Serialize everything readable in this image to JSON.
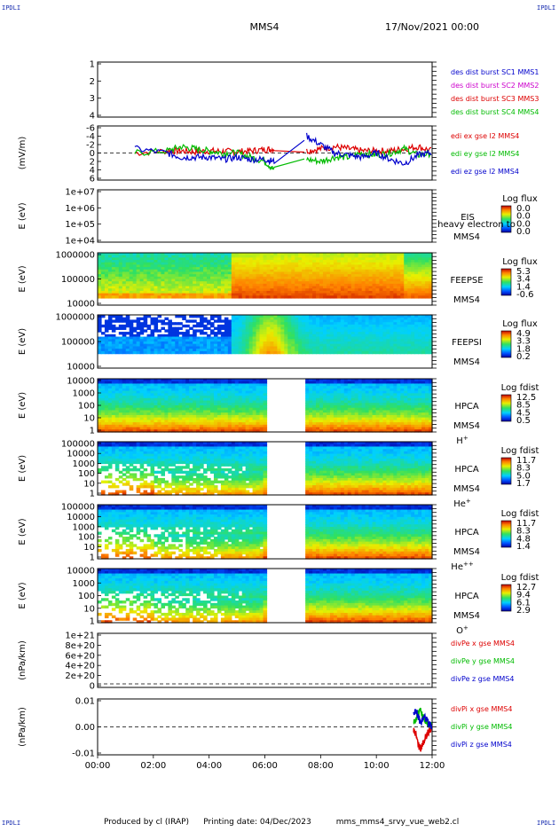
{
  "header": {
    "corner_tl": "IPDLI",
    "corner_tr": "IPDLI",
    "corner_bl": "IPDLI",
    "corner_br": "IPDLI",
    "spacecraft": "MMS4",
    "date": "17/Nov/2021 00:00"
  },
  "footer": {
    "produced_by": "Produced by cl (IRAP)",
    "printing_date": "Printing date: 04/Dec/2023",
    "script": "mms_mms4_srvy_vue_web2.cl"
  },
  "colors": {
    "blue": "#0000cc",
    "red": "#dd0000",
    "green": "#00bb00",
    "magenta": "#cc00cc",
    "frame": "#000000"
  },
  "chart_data": [
    {
      "type": "line",
      "title": "",
      "xlabel": "",
      "ylabel": "",
      "ylim": [
        0.5,
        4.5
      ],
      "yticks": [
        "1",
        "2",
        "3",
        "4"
      ],
      "series": [
        {
          "name": "des dist burst SC1 MMS1",
          "color": "#0000cc",
          "values": []
        },
        {
          "name": "des dist burst SC2 MMS2",
          "color": "#cc00cc",
          "values": []
        },
        {
          "name": "des dist burst SC3 MMS3",
          "color": "#dd0000",
          "values": []
        },
        {
          "name": "des dist burst SC4 MMS4",
          "color": "#00bb00",
          "values": []
        }
      ]
    },
    {
      "type": "line",
      "ylabel": "(mV/m)",
      "ylim": [
        -6,
        6
      ],
      "yticks": [
        "-6",
        "-4",
        "-2",
        "0",
        "2",
        "4",
        "6"
      ],
      "x": [
        "01:20",
        "02:30",
        "03:00",
        "03:30",
        "04:00",
        "04:30",
        "05:00",
        "05:30",
        "06:00",
        "06:20",
        "07:30",
        "08:00",
        "08:30",
        "09:00",
        "09:30",
        "10:00",
        "10:30",
        "11:00",
        "11:30",
        "12:00"
      ],
      "series": [
        {
          "name": "edi ex gse l2 MMS4",
          "color": "#dd0000",
          "values": [
            0,
            0.5,
            0.5,
            0.3,
            0.5,
            0.4,
            0.3,
            0.5,
            0.8,
            1,
            0.5,
            1,
            1.5,
            1,
            0.5,
            0.5,
            0.5,
            1,
            1.5,
            0.5
          ]
        },
        {
          "name": "edi ey gse l2 MMS4",
          "color": "#00bb00",
          "values": [
            0,
            0.5,
            1.5,
            1,
            0.5,
            0,
            0,
            -1,
            -2,
            -4,
            -1.5,
            -2,
            -1,
            -1,
            0,
            -0.5,
            0,
            1,
            -0.5,
            0
          ]
        },
        {
          "name": "edi ez gse l2 MMS4",
          "color": "#0000cc",
          "values": [
            1,
            0,
            -1,
            -1,
            -1,
            -1.5,
            -1,
            -1.5,
            -1.5,
            -2,
            4,
            2,
            0,
            -0.5,
            -1,
            0,
            -1.5,
            -2.5,
            -0.5,
            0
          ]
        }
      ]
    },
    {
      "type": "heatmap",
      "ylabel": "E (eV)",
      "yticks": [
        "1e+07",
        "1e+06",
        "1e+05",
        "1e+04"
      ],
      "label": "EIS",
      "label2": "heavy electron to",
      "sc": "MMS4",
      "colorbar_title": "Log flux",
      "colorbar_ticks": [
        "0.0",
        "0.0",
        "0.0",
        "0.0"
      ]
    },
    {
      "type": "heatmap",
      "ylabel": "E (eV)",
      "yticks": [
        "1000000",
        "100000",
        "10000"
      ],
      "label": "FEEPSE",
      "sc": "MMS4",
      "colorbar_title": "Log flux",
      "colorbar_ticks": [
        "5.3",
        "3.4",
        "1.4",
        "-0.6"
      ]
    },
    {
      "type": "heatmap",
      "ylabel": "E (eV)",
      "yticks": [
        "1000000",
        "100000",
        "10000"
      ],
      "label": "FEEPSI",
      "sc": "MMS4",
      "colorbar_title": "Log flux",
      "colorbar_ticks": [
        "4.9",
        "3.3",
        "1.8",
        "0.2"
      ]
    },
    {
      "type": "heatmap",
      "ylabel": "E (eV)",
      "yticks": [
        "10000",
        "1000",
        "100",
        "10",
        "1"
      ],
      "label": "HPCA",
      "sc": "MMS4",
      "species": "H",
      "charge": "+",
      "colorbar_title": "Log fdist",
      "colorbar_ticks": [
        "12.5",
        "8.5",
        "4.5",
        "0.5"
      ]
    },
    {
      "type": "heatmap",
      "ylabel": "E (eV)",
      "yticks": [
        "100000",
        "10000",
        "1000",
        "100",
        "10",
        "1"
      ],
      "label": "HPCA",
      "sc": "MMS4",
      "species": "He",
      "charge": "+",
      "colorbar_title": "Log fdist",
      "colorbar_ticks": [
        "11.7",
        "8.3",
        "5.0",
        "1.7"
      ]
    },
    {
      "type": "heatmap",
      "ylabel": "E (eV)",
      "yticks": [
        "100000",
        "10000",
        "1000",
        "100",
        "10",
        "1"
      ],
      "label": "HPCA",
      "sc": "MMS4",
      "species": "He",
      "charge": "++",
      "colorbar_title": "Log fdist",
      "colorbar_ticks": [
        "11.7",
        "8.3",
        "4.8",
        "1.4"
      ]
    },
    {
      "type": "heatmap",
      "ylabel": "E (eV)",
      "yticks": [
        "10000",
        "1000",
        "100",
        "10",
        "1"
      ],
      "label": "HPCA",
      "sc": "MMS4",
      "species": "O",
      "charge": "+",
      "colorbar_title": "Log fdist",
      "colorbar_ticks": [
        "12.7",
        "9.4",
        "6.1",
        "2.9"
      ]
    },
    {
      "type": "line",
      "ylabel": "(nPa/km)",
      "ylim": [
        0,
        1e+21
      ],
      "yticks": [
        "1e+21",
        "8e+20",
        "6e+20",
        "4e+20",
        "2e+20",
        "0"
      ],
      "series": [
        {
          "name": "divPe x gse MMS4",
          "color": "#dd0000",
          "values": []
        },
        {
          "name": "divPe y gse MMS4",
          "color": "#00bb00",
          "values": []
        },
        {
          "name": "divPe z gse MMS4",
          "color": "#0000cc",
          "values": []
        }
      ]
    },
    {
      "type": "line",
      "ylabel": "(nPa/km)",
      "ylim": [
        -0.015,
        0.015
      ],
      "yticks": [
        "0.01",
        "0.00",
        "-0.01"
      ],
      "x": [
        "11:20",
        "11:25",
        "11:30",
        "11:35",
        "11:40",
        "11:45",
        "11:50",
        "11:55",
        "12:00"
      ],
      "series": [
        {
          "name": "divPi x gse MMS4",
          "color": "#dd0000",
          "values": [
            -0.002,
            -0.004,
            -0.01,
            -0.013,
            -0.01,
            -0.006,
            -0.004,
            -0.002,
            -0.001
          ]
        },
        {
          "name": "divPi y gse MMS4",
          "color": "#00bb00",
          "values": [
            0.002,
            0.004,
            0.008,
            0.009,
            0.006,
            0.004,
            0.002,
            0.001,
            0.001
          ]
        },
        {
          "name": "divPi z gse MMS4",
          "color": "#0000cc",
          "values": [
            0.008,
            0.01,
            0.006,
            0.002,
            0.004,
            0.006,
            0.003,
            0.001,
            0.0
          ]
        }
      ]
    }
  ],
  "time_axis": {
    "ticks": [
      "00:00",
      "02:00",
      "04:00",
      "06:00",
      "08:00",
      "10:00",
      "12:00"
    ],
    "range_hours": [
      0,
      12
    ],
    "hpca_gap_hours": [
      6.0,
      7.4
    ]
  }
}
